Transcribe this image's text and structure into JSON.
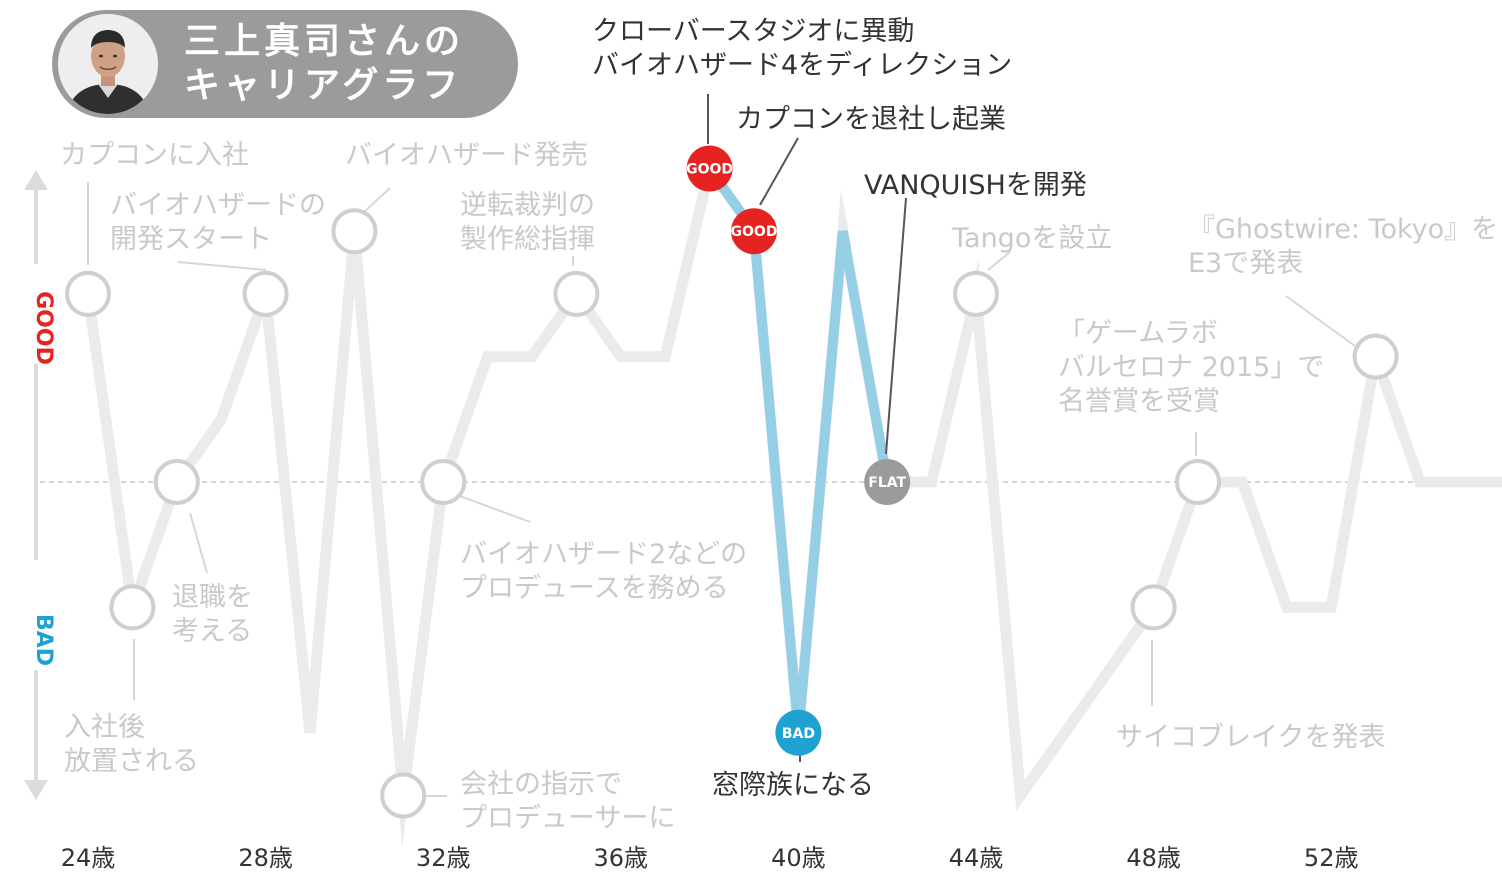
{
  "header": {
    "title_line1": "三上真司さんの",
    "title_line2": "キャリアグラフ"
  },
  "colors": {
    "good": "#e52421",
    "bad": "#1fa2cf",
    "flat": "#9b9b9b",
    "highlight_line": "#95cfe6",
    "faded_line": "#ebebeb",
    "faded_text": "#c9c9c9",
    "header_bg": "#9b9b9b"
  },
  "chart_data": {
    "type": "line",
    "y_axis": {
      "top_label": "GOOD",
      "bottom_label": "BAD"
    },
    "x_ticks": [
      "24歳",
      "28歳",
      "32歳",
      "36歳",
      "40歳",
      "44歳",
      "48歳",
      "52歳"
    ],
    "x_tick_ages": [
      24,
      28,
      32,
      36,
      40,
      44,
      48,
      52
    ],
    "xlim": [
      24,
      56
    ],
    "ylim": [
      -4,
      4
    ],
    "line": [
      {
        "age": 24,
        "level": 3
      },
      {
        "age": 25,
        "level": -2
      },
      {
        "age": 26,
        "level": 0
      },
      {
        "age": 27,
        "level": 1
      },
      {
        "age": 28,
        "level": 3
      },
      {
        "age": 29,
        "level": -4
      },
      {
        "age": 30,
        "level": 4
      },
      {
        "age": 31.1,
        "level": -5
      },
      {
        "age": 32,
        "level": 0
      },
      {
        "age": 33,
        "level": 2
      },
      {
        "age": 34,
        "level": 2
      },
      {
        "age": 35,
        "level": 3
      },
      {
        "age": 36,
        "level": 2
      },
      {
        "age": 37,
        "level": 2
      },
      {
        "age": 38,
        "level": 5
      },
      {
        "age": 39,
        "level": 4
      },
      {
        "age": 40,
        "level": -4
      },
      {
        "age": 41,
        "level": 4
      },
      {
        "age": 42,
        "level": 0
      },
      {
        "age": 43,
        "level": 0
      },
      {
        "age": 44,
        "level": 3
      },
      {
        "age": 45,
        "level": -5
      },
      {
        "age": 48,
        "level": -2
      },
      {
        "age": 49,
        "level": 0
      },
      {
        "age": 50,
        "level": 0
      },
      {
        "age": 51,
        "level": -2
      },
      {
        "age": 52,
        "level": -2
      },
      {
        "age": 53,
        "level": 2
      },
      {
        "age": 54,
        "level": 0
      },
      {
        "age": 56,
        "level": 0
      }
    ],
    "highlight_range": [
      38,
      42
    ],
    "active_markers": [
      {
        "age": 38,
        "level": 5,
        "kind": "good",
        "label": "GOOD"
      },
      {
        "age": 39,
        "level": 4,
        "kind": "good",
        "label": "GOOD"
      },
      {
        "age": 40,
        "level": -4,
        "kind": "bad",
        "label": "BAD"
      },
      {
        "age": 42,
        "level": 0,
        "kind": "flat",
        "label": "FLAT"
      }
    ],
    "faded_markers": [
      {
        "age": 24,
        "level": 3
      },
      {
        "age": 25,
        "level": -2
      },
      {
        "age": 26,
        "level": 0
      },
      {
        "age": 28,
        "level": 3
      },
      {
        "age": 30,
        "level": 4
      },
      {
        "age": 31.1,
        "level": -5
      },
      {
        "age": 32,
        "level": 0
      },
      {
        "age": 35,
        "level": 3
      },
      {
        "age": 44,
        "level": 3
      },
      {
        "age": 48,
        "level": -2
      },
      {
        "age": 49,
        "level": 0
      },
      {
        "age": 53,
        "level": 2
      }
    ],
    "active_annotations": [
      {
        "lines": [
          "クローバースタジオに異動",
          "バイオハザード4をディレクション"
        ]
      },
      {
        "lines": [
          "カプコンを退社し起業"
        ]
      },
      {
        "lines": [
          "VANQUISHを開発"
        ]
      },
      {
        "lines": [
          "窓際族になる"
        ]
      }
    ],
    "faded_annotations": [
      {
        "lines": [
          "カプコンに入社"
        ]
      },
      {
        "lines": [
          "バイオハザードの",
          "開発スタート"
        ]
      },
      {
        "lines": [
          "バイオハザード発売"
        ]
      },
      {
        "lines": [
          "退職を",
          "考える"
        ]
      },
      {
        "lines": [
          "入社後",
          "放置される"
        ]
      },
      {
        "lines": [
          "逆転裁判の",
          "製作総指揮"
        ]
      },
      {
        "lines": [
          "バイオハザード2などの",
          "プロデュースを務める"
        ]
      },
      {
        "lines": [
          "会社の指示で",
          "プロデューサーに"
        ]
      },
      {
        "lines": [
          "Tangoを設立"
        ]
      },
      {
        "lines": [
          "「ゲームラボ",
          "バルセロナ 2015」で",
          "名誉賞を受賞"
        ]
      },
      {
        "lines": [
          "『Ghostwire: Tokyo』を",
          "E3で発表"
        ]
      },
      {
        "lines": [
          "サイコブレイクを発表"
        ]
      }
    ]
  }
}
